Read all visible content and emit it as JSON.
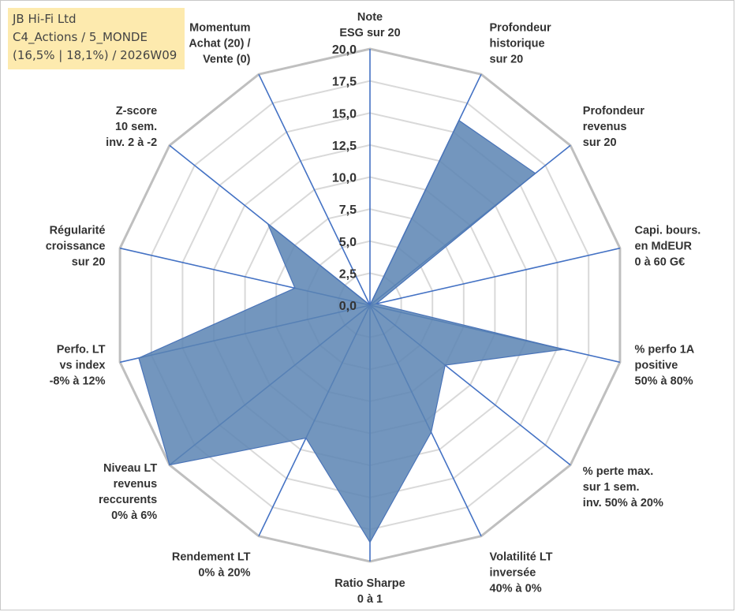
{
  "title_box": {
    "line1": "JB Hi-Fi Ltd",
    "line2": "C4_Actions / 5_MONDE",
    "line3": "(16,5% | 18,1%) / 2026W09"
  },
  "chart_data": {
    "type": "radar",
    "rmax": 20,
    "grid_step": 2.5,
    "tick_labels": [
      "0,0",
      "2,5",
      "5,0",
      "7,5",
      "10,0",
      "12,5",
      "15,0",
      "17,5",
      "20,0"
    ],
    "axes": [
      [
        "Note",
        "ESG sur 20"
      ],
      [
        "Profondeur",
        "historique",
        "sur 20"
      ],
      [
        "Profondeur",
        "revenus",
        "sur 20"
      ],
      [
        "Capi. bours.",
        "en MdEUR",
        "0 à 60 G€"
      ],
      [
        "% perfo 1A",
        "positive",
        "50% à 80%"
      ],
      [
        "% perte max.",
        "sur 1 sem.",
        "inv. 50% à 20%"
      ],
      [
        "Volatilité LT",
        "inversée",
        "40% à 0%"
      ],
      [
        "Ratio Sharpe",
        "0 à 1"
      ],
      [
        "Rendement LT",
        "0% à 20%"
      ],
      [
        "Niveau LT",
        "revenus",
        "reccurents",
        "0% à 6%"
      ],
      [
        "Perfo. LT",
        "vs index",
        "-8% à 12%"
      ],
      [
        "Régularité",
        "croissance",
        "sur 20"
      ],
      [
        "Z-score",
        "10 sem.",
        "inv. 2 à -2"
      ],
      [
        "Momentum",
        "Achat (20) /",
        "Vente (0)"
      ]
    ],
    "values": [
      0,
      16,
      16.5,
      0.5,
      15.5,
      7.5,
      11,
      18.5,
      11.5,
      20,
      18.5,
      6,
      10.2,
      0
    ],
    "colors": {
      "fill": "#5b84b3",
      "outline": "#4a74b8",
      "spoke": "#4472c4",
      "grid_outer": "#bfbfbf",
      "grid_inner": "#d9d9d9"
    }
  }
}
